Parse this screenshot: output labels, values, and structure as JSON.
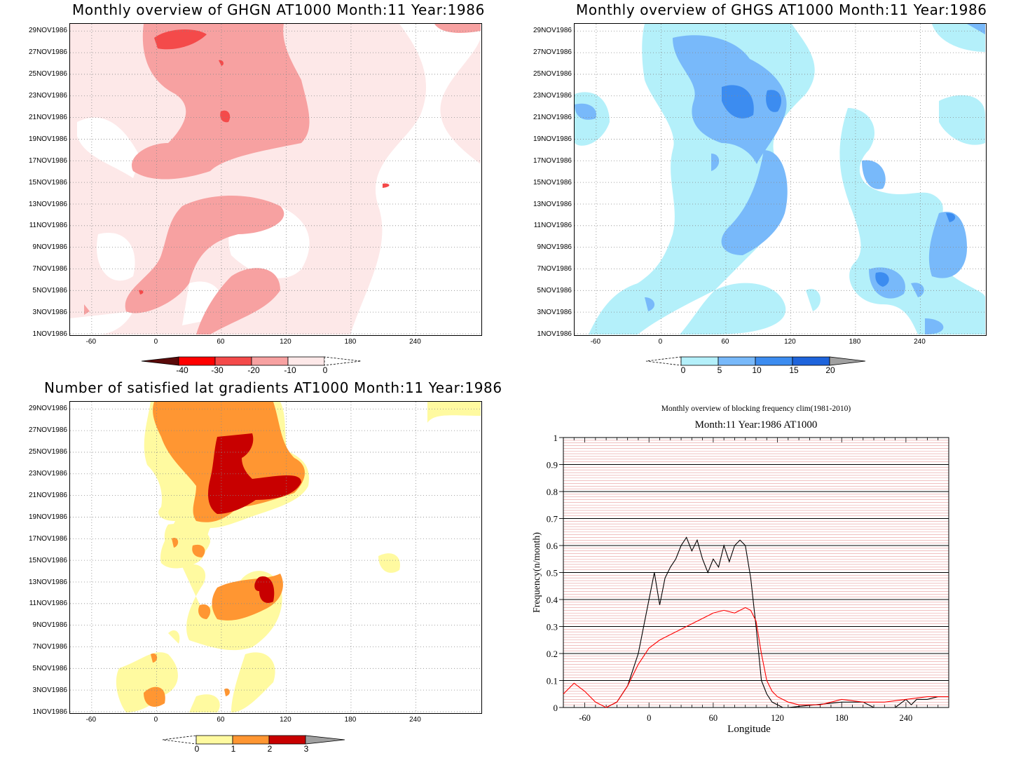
{
  "panels": [
    {
      "id": "ghgn",
      "title": "Monthly overview of GHGN AT1000 Month:11 Year:1986",
      "ytick_labels": [
        "29NOV1986",
        "27NOV1986",
        "25NOV1986",
        "23NOV1986",
        "21NOV1986",
        "19NOV1986",
        "17NOV1986",
        "15NOV1986",
        "13NOV1986",
        "11NOV1986",
        "9NOV1986",
        "7NOV1986",
        "5NOV1986",
        "3NOV1986",
        "1NOV1986"
      ],
      "xtick_labels": [
        "-60",
        "0",
        "60",
        "120",
        "180",
        "240"
      ],
      "colorbar": {
        "labels": [
          "-40",
          "-30",
          "-20",
          "-10",
          "0"
        ],
        "colors": [
          "#5a0a0a",
          "#ff0000",
          "#f44a4a",
          "#f7a1a1",
          "#fde8e8"
        ]
      }
    },
    {
      "id": "ghgs",
      "title": "Monthly overview of GHGS AT1000 Month:11 Year:1986",
      "ytick_labels": [
        "29NOV1986",
        "27NOV1986",
        "25NOV1986",
        "23NOV1986",
        "21NOV1986",
        "19NOV1986",
        "17NOV1986",
        "15NOV1986",
        "13NOV1986",
        "11NOV1986",
        "9NOV1986",
        "7NOV1986",
        "5NOV1986",
        "3NOV1986",
        "1NOV1986"
      ],
      "xtick_labels": [
        "-60",
        "0",
        "60",
        "120",
        "180",
        "240"
      ],
      "colorbar": {
        "labels": [
          "0",
          "5",
          "10",
          "15",
          "20"
        ],
        "colors": [
          "#b4f0fa",
          "#78b9fa",
          "#3c8cf0",
          "#1e64dc",
          "#a0a0a0"
        ]
      }
    },
    {
      "id": "latgrad",
      "title": "Number of satisfied lat gradients AT1000 Month:11 Year:1986",
      "ytick_labels": [
        "29NOV1986",
        "27NOV1986",
        "25NOV1986",
        "23NOV1986",
        "21NOV1986",
        "19NOV1986",
        "17NOV1986",
        "15NOV1986",
        "13NOV1986",
        "11NOV1986",
        "9NOV1986",
        "7NOV1986",
        "5NOV1986",
        "3NOV1986",
        "1NOV1986"
      ],
      "xtick_labels": [
        "-60",
        "0",
        "60",
        "120",
        "180",
        "240"
      ],
      "colorbar": {
        "labels": [
          "0",
          "1",
          "2",
          "3"
        ],
        "colors": [
          "#fffaa0",
          "#ff9632",
          "#c80000",
          "#a0a0a0"
        ]
      }
    }
  ],
  "line_panel": {
    "title1": "Monthly overview of blocking frequency clim(1981-2010)",
    "title2": "Month:11 Year:1986  AT1000",
    "ylabel": "Frequency(n/month)",
    "xlabel": "Longitude",
    "ytick_labels": [
      "0",
      "0.1",
      "0.2",
      "0.3",
      "0.4",
      "0.5",
      "0.6",
      "0.7",
      "0.8",
      "0.9",
      "1"
    ],
    "xtick_labels": [
      "-60",
      "0",
      "60",
      "120",
      "180",
      "240"
    ]
  },
  "chart_data": [
    {
      "type": "heatmap",
      "title": "Monthly overview of GHGN AT1000 Month:11 Year:1986",
      "x_range": [
        -80,
        300
      ],
      "y_range": [
        "1NOV1986",
        "30NOV1986"
      ],
      "levels": [
        -40,
        -30,
        -20,
        -10,
        0
      ]
    },
    {
      "type": "heatmap",
      "title": "Monthly overview of GHGS AT1000 Month:11 Year:1986",
      "x_range": [
        -80,
        300
      ],
      "y_range": [
        "1NOV1986",
        "30NOV1986"
      ],
      "levels": [
        0,
        5,
        10,
        15,
        20
      ]
    },
    {
      "type": "heatmap",
      "title": "Number of satisfied lat gradients AT1000 Month:11 Year:1986",
      "x_range": [
        -80,
        300
      ],
      "y_range": [
        "1NOV1986",
        "30NOV1986"
      ],
      "levels": [
        0,
        1,
        2,
        3
      ]
    },
    {
      "type": "line",
      "title": "Monthly overview of blocking frequency clim(1981-2010)",
      "subtitle": "Month:11 Year:1986  AT1000",
      "xlabel": "Longitude",
      "ylabel": "Frequency(n/month)",
      "xlim": [
        -80,
        280
      ],
      "ylim": [
        0,
        1
      ],
      "series": [
        {
          "color": "#000000",
          "x": [
            -80,
            -60,
            -40,
            -30,
            -20,
            -10,
            0,
            5,
            10,
            15,
            20,
            25,
            30,
            35,
            40,
            45,
            50,
            55,
            60,
            65,
            70,
            75,
            80,
            85,
            90,
            95,
            100,
            105,
            110,
            115,
            120,
            125,
            130,
            180,
            200,
            210,
            220,
            230,
            240,
            245,
            250,
            260,
            270,
            280
          ],
          "y": [
            0.0,
            0.0,
            0.0,
            0.02,
            0.08,
            0.2,
            0.4,
            0.5,
            0.38,
            0.48,
            0.52,
            0.55,
            0.6,
            0.63,
            0.58,
            0.62,
            0.55,
            0.5,
            0.55,
            0.52,
            0.6,
            0.54,
            0.6,
            0.62,
            0.6,
            0.48,
            0.3,
            0.1,
            0.05,
            0.02,
            0.01,
            0.0,
            0.0,
            0.02,
            0.02,
            0.0,
            0.0,
            0.0,
            0.03,
            0.01,
            0.03,
            0.03,
            0.04,
            0.04
          ]
        },
        {
          "color": "#ff0000",
          "x": [
            -80,
            -70,
            -60,
            -50,
            -40,
            -30,
            -20,
            -10,
            0,
            10,
            20,
            30,
            40,
            50,
            60,
            70,
            80,
            90,
            95,
            100,
            105,
            110,
            115,
            120,
            130,
            140,
            160,
            180,
            200,
            220,
            240,
            260,
            270,
            280
          ],
          "y": [
            0.05,
            0.09,
            0.06,
            0.02,
            0.0,
            0.02,
            0.08,
            0.16,
            0.22,
            0.25,
            0.27,
            0.29,
            0.31,
            0.33,
            0.35,
            0.36,
            0.35,
            0.37,
            0.36,
            0.32,
            0.2,
            0.1,
            0.06,
            0.04,
            0.02,
            0.01,
            0.01,
            0.03,
            0.02,
            0.02,
            0.03,
            0.04,
            0.04,
            0.04
          ]
        }
      ]
    }
  ]
}
